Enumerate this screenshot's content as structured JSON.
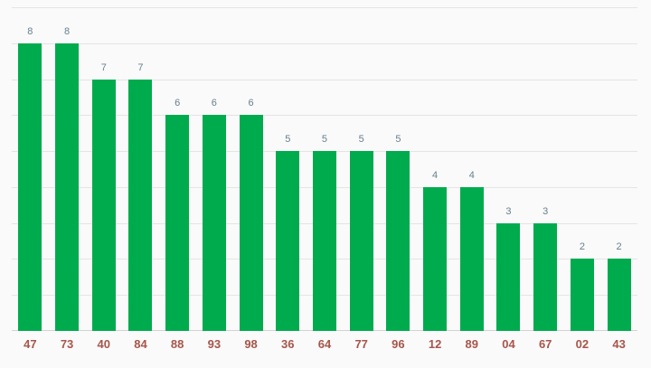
{
  "chart_data": {
    "type": "bar",
    "categories": [
      "47",
      "73",
      "40",
      "84",
      "88",
      "93",
      "98",
      "36",
      "64",
      "77",
      "96",
      "12",
      "89",
      "04",
      "67",
      "02",
      "43"
    ],
    "values": [
      8,
      8,
      7,
      7,
      6,
      6,
      6,
      5,
      5,
      5,
      5,
      4,
      4,
      3,
      3,
      2,
      2
    ],
    "title": "",
    "xlabel": "",
    "ylabel": "",
    "ylim": [
      0,
      9
    ],
    "grid": true,
    "legend": "none",
    "colors": {
      "bar": "#00ab4e",
      "value_label": "#68808f",
      "x_label": "#a6564b",
      "gridline": "#e4e4e4",
      "baseline": "#d2d2d2",
      "background": "#fafafa"
    }
  }
}
